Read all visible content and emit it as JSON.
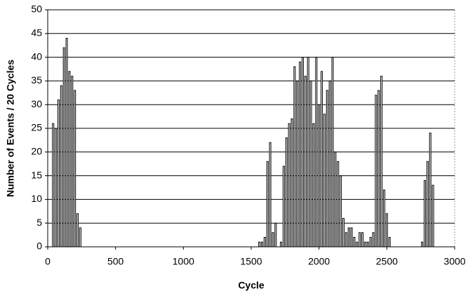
{
  "chart_data": {
    "type": "bar",
    "x_label": "Cycle",
    "y_label": "Number of Events / 20 Cycles",
    "x": [
      40,
      60,
      80,
      100,
      120,
      140,
      160,
      180,
      200,
      220,
      240,
      1560,
      1580,
      1600,
      1620,
      1640,
      1660,
      1680,
      1720,
      1740,
      1760,
      1780,
      1800,
      1820,
      1840,
      1860,
      1880,
      1900,
      1920,
      1940,
      1960,
      1980,
      2000,
      2020,
      2040,
      2060,
      2080,
      2100,
      2120,
      2140,
      2160,
      2180,
      2200,
      2220,
      2240,
      2260,
      2280,
      2300,
      2320,
      2340,
      2360,
      2380,
      2400,
      2420,
      2440,
      2460,
      2480,
      2500,
      2520,
      2760,
      2780,
      2800,
      2820,
      2840
    ],
    "values": [
      26,
      25,
      31,
      34,
      42,
      44,
      37,
      36,
      33,
      7,
      4,
      1,
      1,
      2,
      18,
      22,
      3,
      5,
      1,
      17,
      23,
      26,
      27,
      38,
      35,
      39,
      40,
      36,
      40,
      35,
      26,
      40,
      30,
      37,
      28,
      33,
      35,
      40,
      20,
      18,
      15,
      6,
      3,
      4,
      4,
      2,
      1,
      3,
      3,
      1,
      1,
      2,
      3,
      32,
      33,
      36,
      12,
      7,
      2,
      1,
      14,
      18,
      24,
      13
    ],
    "color": "#000000",
    "xlim": [
      0,
      3000
    ],
    "xticks": [
      0,
      500,
      1000,
      1500,
      2000,
      2500,
      3000
    ],
    "ylim": [
      0,
      50
    ],
    "yticks": [
      0,
      5,
      10,
      15,
      20,
      25,
      30,
      35,
      40,
      45,
      50
    ],
    "grid": true
  }
}
